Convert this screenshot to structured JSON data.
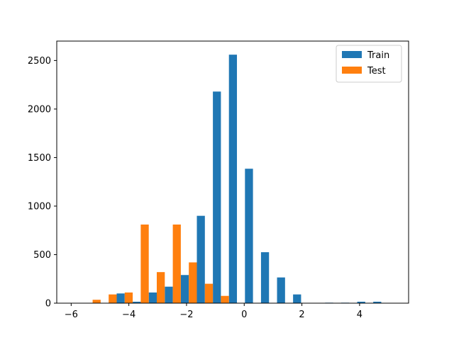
{
  "chart_data": {
    "type": "bar",
    "title": "",
    "xlabel": "",
    "ylabel": "",
    "xlim": [
      -6.5,
      5.7
    ],
    "ylim": [
      0,
      2700
    ],
    "xticks": [
      -6,
      -4,
      -2,
      0,
      2,
      4
    ],
    "yticks": [
      0,
      500,
      1000,
      1500,
      2000,
      2500
    ],
    "xtick_labels": [
      "−6",
      "−4",
      "−2",
      "0",
      "2",
      "4"
    ],
    "ytick_labels": [
      "0",
      "500",
      "1000",
      "1500",
      "2000",
      "2500"
    ],
    "grid": false,
    "legend_position": "top-right",
    "bin_edges": [
      -6.09,
      -5.534,
      -4.978,
      -4.422,
      -3.866,
      -3.31,
      -2.754,
      -2.198,
      -1.642,
      -1.086,
      -0.53,
      0.026,
      0.582,
      1.138,
      1.694,
      2.25,
      2.806,
      3.362,
      3.918,
      4.474,
      5.03
    ],
    "series": [
      {
        "name": "Train",
        "color": "#1f77b4",
        "values": [
          0,
          0,
          0,
          100,
          15,
          110,
          170,
          290,
          900,
          2180,
          2560,
          1385,
          525,
          265,
          90,
          0,
          5,
          5,
          15,
          15
        ]
      },
      {
        "name": "Test",
        "color": "#ff7f0e",
        "values": [
          0,
          35,
          90,
          110,
          810,
          320,
          810,
          420,
          200,
          75,
          0,
          0,
          0,
          0,
          0,
          0,
          0,
          0,
          0,
          0
        ]
      }
    ]
  }
}
